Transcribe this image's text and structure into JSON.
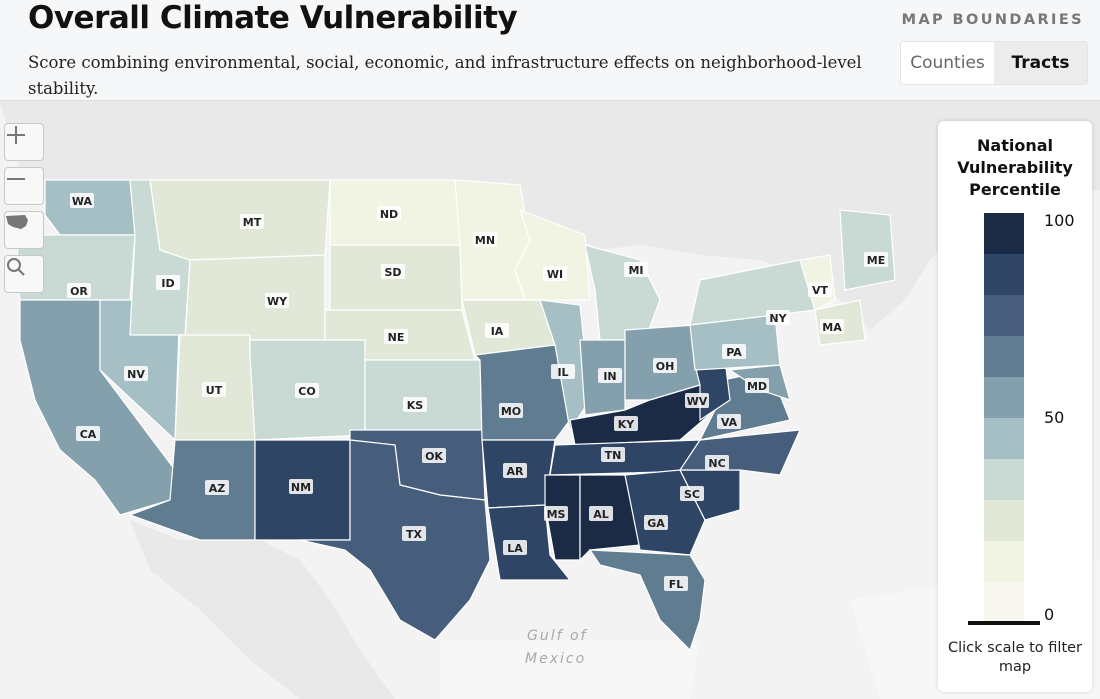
{
  "header": {
    "title": "Overall Climate Vulnerability",
    "subtitle": "Score combining environmental, social, economic, and infrastructure effects on neighborhood-level stability.",
    "boundaries_label": "MAP BOUNDARIES",
    "options": [
      "Counties",
      "Tracts"
    ],
    "selected": "Tracts"
  },
  "map_controls": {
    "zoom_in": "zoom-in-icon",
    "zoom_out": "zoom-out-icon",
    "reset": "us-map-icon",
    "search": "search-icon"
  },
  "legend": {
    "title": "National Vulnerability Percentile",
    "tick_labels": [
      "100",
      "50",
      "0"
    ],
    "colors": [
      "#1b2a45",
      "#2e4565",
      "#465e7b",
      "#5f7c91",
      "#84a0ad",
      "#a6bfc5",
      "#c9d9d4",
      "#e2e8d8",
      "#f1f3e3",
      "#f8f8f1"
    ],
    "note": "Click scale to filter map"
  },
  "states": [
    {
      "abbr": "WA",
      "value": 45
    },
    {
      "abbr": "OR",
      "value": 40
    },
    {
      "abbr": "CA",
      "value": 55
    },
    {
      "abbr": "NV",
      "value": 48
    },
    {
      "abbr": "ID",
      "value": 35
    },
    {
      "abbr": "MT",
      "value": 22
    },
    {
      "abbr": "WY",
      "value": 25
    },
    {
      "abbr": "UT",
      "value": 30
    },
    {
      "abbr": "AZ",
      "value": 70
    },
    {
      "abbr": "NM",
      "value": 82
    },
    {
      "abbr": "CO",
      "value": 35
    },
    {
      "abbr": "ND",
      "value": 15
    },
    {
      "abbr": "SD",
      "value": 30
    },
    {
      "abbr": "NE",
      "value": 28
    },
    {
      "abbr": "KS",
      "value": 40
    },
    {
      "abbr": "OK",
      "value": 72
    },
    {
      "abbr": "TX",
      "value": 78
    },
    {
      "abbr": "MN",
      "value": 18
    },
    {
      "abbr": "IA",
      "value": 25
    },
    {
      "abbr": "MO",
      "value": 62
    },
    {
      "abbr": "AR",
      "value": 85
    },
    {
      "abbr": "LA",
      "value": 90
    },
    {
      "abbr": "WI",
      "value": 20
    },
    {
      "abbr": "IL",
      "value": 45
    },
    {
      "abbr": "MI",
      "value": 35
    },
    {
      "abbr": "IN",
      "value": 60
    },
    {
      "abbr": "OH",
      "value": 60
    },
    {
      "abbr": "KY",
      "value": 92
    },
    {
      "abbr": "TN",
      "value": 88
    },
    {
      "abbr": "MS",
      "value": 95
    },
    {
      "abbr": "AL",
      "value": 92
    },
    {
      "abbr": "GA",
      "value": 85
    },
    {
      "abbr": "FL",
      "value": 70
    },
    {
      "abbr": "SC",
      "value": 85
    },
    {
      "abbr": "NC",
      "value": 78
    },
    {
      "abbr": "VA",
      "value": 65
    },
    {
      "abbr": "WV",
      "value": 88
    },
    {
      "abbr": "PA",
      "value": 45
    },
    {
      "abbr": "NY",
      "value": 38
    },
    {
      "abbr": "VT",
      "value": 15
    },
    {
      "abbr": "MA",
      "value": 30
    },
    {
      "abbr": "ME",
      "value": 40
    },
    {
      "abbr": "MD",
      "value": 55
    }
  ],
  "water_labels": [
    "Gulf of",
    "Mexico"
  ]
}
